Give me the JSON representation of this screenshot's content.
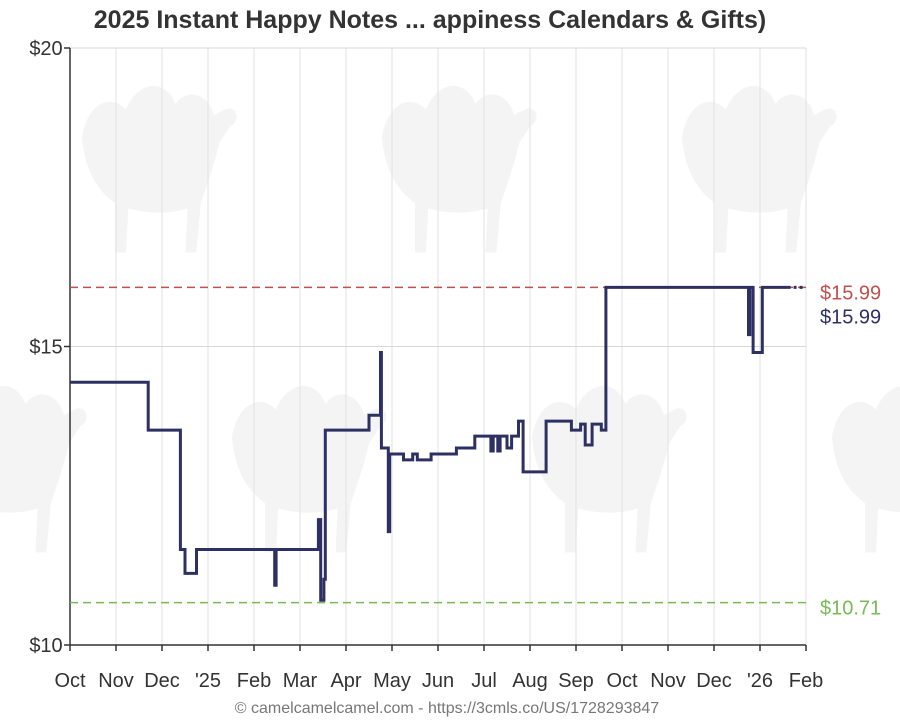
{
  "chart_data": {
    "type": "line",
    "title": "2025 Instant Happy Notes ... appiness Calendars & Gifts)",
    "y_ticks": [
      {
        "value": 20,
        "label": "$20"
      },
      {
        "value": 15,
        "label": "$15"
      },
      {
        "value": 10,
        "label": "$10"
      }
    ],
    "ylim": [
      10,
      20
    ],
    "xlim": [
      0,
      15.9
    ],
    "x_ticks": [
      {
        "x": 0,
        "label": "Oct"
      },
      {
        "x": 1,
        "label": "Nov"
      },
      {
        "x": 2,
        "label": "Dec"
      },
      {
        "x": 3,
        "label": "'25"
      },
      {
        "x": 4,
        "label": "Feb"
      },
      {
        "x": 5,
        "label": "Mar"
      },
      {
        "x": 6,
        "label": "Apr"
      },
      {
        "x": 7,
        "label": "May"
      },
      {
        "x": 8,
        "label": "Jun"
      },
      {
        "x": 9,
        "label": "Jul"
      },
      {
        "x": 10,
        "label": "Aug"
      },
      {
        "x": 11,
        "label": "Sep"
      },
      {
        "x": 12,
        "label": "Oct"
      },
      {
        "x": 13,
        "label": "Nov"
      },
      {
        "x": 14,
        "label": "Dec"
      },
      {
        "x": 15,
        "label": "'26"
      },
      {
        "x": 16,
        "label": "Feb"
      }
    ],
    "reference_lines": [
      {
        "value": 15.99,
        "label": "$15.99",
        "color": "#c0504d",
        "style": "dashed"
      },
      {
        "value": 10.71,
        "label": "$10.71",
        "color": "#77bb55",
        "style": "dashed"
      }
    ],
    "current_label": {
      "value": 15.99,
      "label": "$15.99",
      "color": "#2e3064"
    },
    "grid": true,
    "series": [
      {
        "color": "#2e3064",
        "points": [
          [
            0,
            14.4
          ],
          [
            1.7,
            14.4
          ],
          [
            1.7,
            13.6
          ],
          [
            2.4,
            13.6
          ],
          [
            2.4,
            11.6
          ],
          [
            2.5,
            11.6
          ],
          [
            2.5,
            11.2
          ],
          [
            2.75,
            11.2
          ],
          [
            2.75,
            11.6
          ],
          [
            4.45,
            11.6
          ],
          [
            4.45,
            11.0
          ],
          [
            4.48,
            11.0
          ],
          [
            4.48,
            11.6
          ],
          [
            5.4,
            11.6
          ],
          [
            5.4,
            12.1
          ],
          [
            5.45,
            12.1
          ],
          [
            5.45,
            10.75
          ],
          [
            5.52,
            10.75
          ],
          [
            5.52,
            11.1
          ],
          [
            5.55,
            11.1
          ],
          [
            5.55,
            13.6
          ],
          [
            6.5,
            13.6
          ],
          [
            6.5,
            13.85
          ],
          [
            6.75,
            13.85
          ],
          [
            6.75,
            14.9
          ],
          [
            6.77,
            14.9
          ],
          [
            6.77,
            13.3
          ],
          [
            6.92,
            13.3
          ],
          [
            6.92,
            11.9
          ],
          [
            6.95,
            11.9
          ],
          [
            6.95,
            13.2
          ],
          [
            7.25,
            13.2
          ],
          [
            7.25,
            13.1
          ],
          [
            7.45,
            13.1
          ],
          [
            7.45,
            13.2
          ],
          [
            7.55,
            13.2
          ],
          [
            7.55,
            13.1
          ],
          [
            7.85,
            13.1
          ],
          [
            7.85,
            13.2
          ],
          [
            8.4,
            13.2
          ],
          [
            8.4,
            13.3
          ],
          [
            8.8,
            13.3
          ],
          [
            8.8,
            13.5
          ],
          [
            9.15,
            13.5
          ],
          [
            9.15,
            13.25
          ],
          [
            9.2,
            13.25
          ],
          [
            9.2,
            13.5
          ],
          [
            9.3,
            13.5
          ],
          [
            9.3,
            13.25
          ],
          [
            9.35,
            13.25
          ],
          [
            9.35,
            13.5
          ],
          [
            9.5,
            13.5
          ],
          [
            9.5,
            13.3
          ],
          [
            9.6,
            13.3
          ],
          [
            9.6,
            13.5
          ],
          [
            9.75,
            13.5
          ],
          [
            9.75,
            13.75
          ],
          [
            9.85,
            13.75
          ],
          [
            9.85,
            12.9
          ],
          [
            10.35,
            12.9
          ],
          [
            10.35,
            13.75
          ],
          [
            10.9,
            13.75
          ],
          [
            10.9,
            13.6
          ],
          [
            11.1,
            13.6
          ],
          [
            11.1,
            13.7
          ],
          [
            11.2,
            13.7
          ],
          [
            11.2,
            13.35
          ],
          [
            11.35,
            13.35
          ],
          [
            11.35,
            13.7
          ],
          [
            11.55,
            13.7
          ],
          [
            11.55,
            13.6
          ],
          [
            11.65,
            13.6
          ],
          [
            11.65,
            15.99
          ],
          [
            14.75,
            15.99
          ],
          [
            14.75,
            15.2
          ],
          [
            14.78,
            15.2
          ],
          [
            14.78,
            15.99
          ],
          [
            14.85,
            15.99
          ],
          [
            14.85,
            14.9
          ],
          [
            15.05,
            14.9
          ],
          [
            15.05,
            15.99
          ],
          [
            15.6,
            15.99
          ]
        ],
        "projection": [
          [
            15.6,
            15.99
          ],
          [
            15.95,
            15.99
          ]
        ]
      }
    ],
    "footer": "© camelcamelcamel.com - https://3cmls.co/US/1728293847"
  }
}
